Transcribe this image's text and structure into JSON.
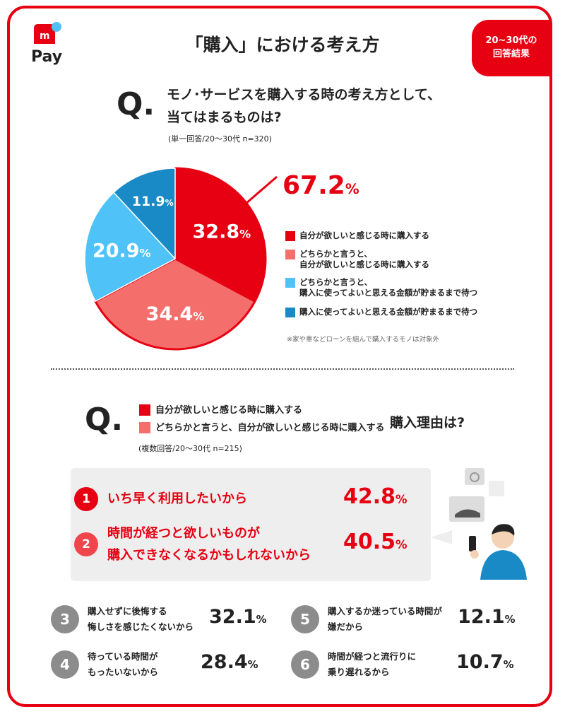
{
  "logo": "Pay",
  "title": "「購入」における考え方",
  "badge": "20~30代の\n回答結果",
  "q1": {
    "mark": "Q.",
    "question": "モノ･サービスを購入する時の考え方として、\n当てはまるものは?",
    "note": "(単一回答/20～30代 n=320)"
  },
  "chart_data": {
    "type": "pie",
    "categories": [
      "自分が欲しいと感じる時に購入する",
      "どちらかと言うと、\n自分が欲しいと感じる時に購入する",
      "どちらかと言うと、\n購入に使ってよいと思える金額が貯まるまで待つ",
      "購入に使ってよいと思える金額が貯まるまで待つ"
    ],
    "values": [
      32.8,
      34.4,
      20.9,
      11.9
    ],
    "value_labels": [
      "32.8%",
      "34.4%",
      "20.9%",
      "11.9%"
    ],
    "colors": [
      "#e60012",
      "#f46f6c",
      "#4fc3f7",
      "#1a8ac6"
    ],
    "annotation": "67.2%",
    "note": "※家や車などローンを組んで購入するモノは対象外"
  },
  "q2": {
    "mark": "Q.",
    "conditions": [
      "自分が欲しいと感じる時に購入する",
      "どちらかと言うと、自分が欲しいと感じる時に購入する"
    ],
    "question": "購入理由は?",
    "note": "(複数回答/20～30代 n=215)"
  },
  "ranking": [
    {
      "rank": "1",
      "reason": "いち早く利用したいから",
      "value": "42.8%"
    },
    {
      "rank": "2",
      "reason": "時間が経つと欲しいものが\n購入できなくなるかもしれないから",
      "value": "40.5%"
    },
    {
      "rank": "3",
      "reason": "購入せずに後悔する\n悔しさを感じたくないから",
      "value": "32.1%"
    },
    {
      "rank": "4",
      "reason": "待っている時間が\nもったいないから",
      "value": "28.4%"
    },
    {
      "rank": "5",
      "reason": "購入するか迷っている時間が\n嫌だから",
      "value": "12.1%"
    },
    {
      "rank": "6",
      "reason": "時間が経つと流行りに\n乗り遅れるから",
      "value": "10.7%"
    }
  ]
}
